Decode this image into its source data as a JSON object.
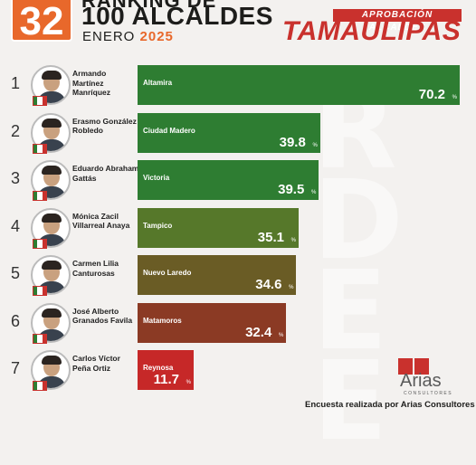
{
  "header": {
    "badge_number": "32",
    "line1": "RANKING DE",
    "line2": "100 ALCALDES",
    "line3_prefix": "ENERO",
    "line3_year": "2025",
    "subtitle": "APROBACIÓN ALCALDES",
    "state": "TAMAULIPAS"
  },
  "chart_data": {
    "type": "bar",
    "orientation": "horizontal",
    "xlim": [
      0,
      70.2
    ],
    "unit": "%",
    "rows": [
      {
        "rank": "1",
        "name": "Armando Martínez Manríquez",
        "city": "Altamira",
        "value": 70.2,
        "color": "#2e7d32"
      },
      {
        "rank": "2",
        "name": "Erasmo González Robledo",
        "city": "Ciudad Madero",
        "value": 39.8,
        "color": "#2e7d32"
      },
      {
        "rank": "3",
        "name": "Eduardo Abraham Gattás",
        "city": "Victoria",
        "value": 39.5,
        "color": "#2e7d32"
      },
      {
        "rank": "4",
        "name": "Mónica Zacil Villarreal Anaya",
        "city": "Tampico",
        "value": 35.1,
        "color": "#56782a"
      },
      {
        "rank": "5",
        "name": "Carmen Lilia Canturosas",
        "city": "Nuevo Laredo",
        "value": 34.6,
        "color": "#6a5c25"
      },
      {
        "rank": "6",
        "name": "José Alberto Granados Favila",
        "city": "Matamoros",
        "value": 32.4,
        "color": "#8b3a24"
      },
      {
        "rank": "7",
        "name": "Carlos Víctor Peña Ortiz",
        "city": "Reynosa",
        "value": 11.7,
        "color": "#c62828"
      }
    ]
  },
  "footer": {
    "brand": "Arias",
    "brand_sub": "CONSULTORES",
    "source": "Encuesta realizada por Arias Consultores"
  }
}
